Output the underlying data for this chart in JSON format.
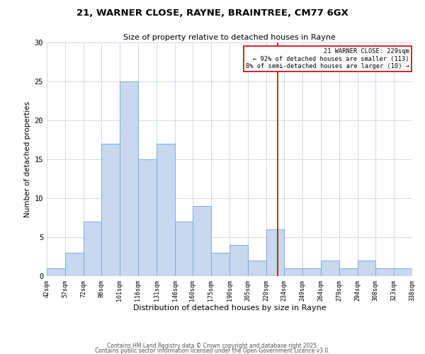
{
  "title1": "21, WARNER CLOSE, RAYNE, BRAINTREE, CM77 6GX",
  "title2": "Size of property relative to detached houses in Rayne",
  "xlabel": "Distribution of detached houses by size in Rayne",
  "ylabel": "Number of detached properties",
  "bar_values": [
    1,
    3,
    7,
    17,
    25,
    15,
    17,
    7,
    9,
    3,
    4,
    2,
    6,
    1,
    1,
    2,
    1,
    2,
    1,
    1
  ],
  "bin_edges": [
    42,
    57,
    72,
    86,
    101,
    116,
    131,
    146,
    160,
    175,
    190,
    205,
    220,
    234,
    249,
    264,
    279,
    294,
    308,
    323,
    338
  ],
  "tick_labels": [
    "42sqm",
    "57sqm",
    "72sqm",
    "86sqm",
    "101sqm",
    "116sqm",
    "131sqm",
    "146sqm",
    "160sqm",
    "175sqm",
    "190sqm",
    "205sqm",
    "220sqm",
    "234sqm",
    "249sqm",
    "264sqm",
    "279sqm",
    "294sqm",
    "308sqm",
    "323sqm",
    "338sqm"
  ],
  "bar_color": "#c8d8ee",
  "bar_edgecolor": "#7aadd4",
  "vline_x": 229,
  "vline_color": "#cc0000",
  "annotation_lines": [
    "21 WARNER CLOSE: 229sqm",
    "← 92% of detached houses are smaller (113)",
    "8% of semi-detached houses are larger (10) →"
  ],
  "annotation_box_edgecolor": "#cc0000",
  "ylim": [
    0,
    30
  ],
  "yticks": [
    0,
    5,
    10,
    15,
    20,
    25,
    30
  ],
  "footer1": "Contains HM Land Registry data © Crown copyright and database right 2025.",
  "footer2": "Contains public sector information licensed under the Open Government Licence v3.0.",
  "bg_color": "#ffffff",
  "grid_color": "#d0d8e8"
}
